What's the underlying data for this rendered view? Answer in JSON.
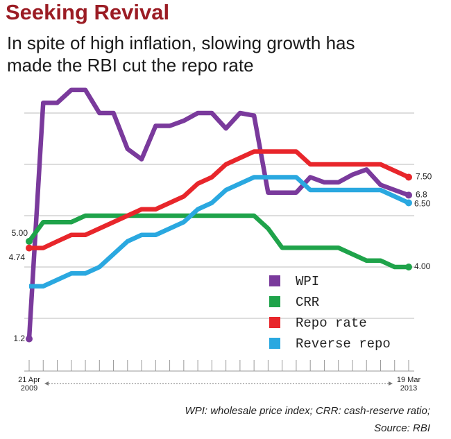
{
  "chart_data": {
    "type": "line",
    "title": "Seeking Revival",
    "subtitle": "In spite of high inflation, slowing growth has\nmade the RBI cut the repo rate",
    "note": "WPI: wholesale price index; CRR: cash-reserve ratio;\nSource: RBI",
    "categories": [
      "21 Apr\n2009",
      null,
      null,
      null,
      null,
      null,
      null,
      null,
      null,
      null,
      null,
      null,
      null,
      null,
      null,
      null,
      null,
      null,
      null,
      null,
      null,
      null,
      null,
      null,
      null,
      null,
      null,
      "19 Mar\n2013"
    ],
    "ylim": [
      0,
      12
    ],
    "yticks": [
      2,
      4,
      6,
      8,
      10
    ],
    "grid": true,
    "series": [
      {
        "name": "WPI",
        "color": "#7a3a9c",
        "values": [
          1.2,
          10.4,
          10.4,
          10.9,
          10.9,
          10.0,
          10.0,
          8.6,
          8.2,
          9.5,
          9.5,
          9.7,
          10.0,
          10.0,
          9.4,
          10.0,
          9.9,
          6.9,
          6.9,
          6.9,
          7.5,
          7.3,
          7.3,
          7.6,
          7.8,
          7.2,
          7.0,
          6.8
        ],
        "value_labels": [
          "1.2",
          null,
          null,
          null,
          null,
          null,
          null,
          null,
          null,
          null,
          null,
          null,
          null,
          null,
          null,
          null,
          null,
          null,
          null,
          null,
          null,
          null,
          null,
          null,
          null,
          null,
          null,
          "6.8"
        ]
      },
      {
        "name": "CRR",
        "color": "#1fa34a",
        "values": [
          5.0,
          5.75,
          5.75,
          5.75,
          6.0,
          6.0,
          6.0,
          6.0,
          6.0,
          6.0,
          6.0,
          6.0,
          6.0,
          6.0,
          6.0,
          6.0,
          6.0,
          5.5,
          4.75,
          4.75,
          4.75,
          4.75,
          4.75,
          4.5,
          4.25,
          4.25,
          4.0,
          4.0
        ],
        "value_labels": [
          "5.00",
          null,
          null,
          null,
          null,
          null,
          null,
          null,
          null,
          null,
          null,
          null,
          null,
          null,
          null,
          null,
          null,
          null,
          null,
          null,
          null,
          null,
          null,
          null,
          null,
          null,
          null,
          "4.00"
        ]
      },
      {
        "name": "Repo rate",
        "color": "#e8262b",
        "values": [
          4.74,
          4.74,
          5.0,
          5.25,
          5.25,
          5.5,
          5.75,
          6.0,
          6.25,
          6.25,
          6.5,
          6.75,
          7.25,
          7.5,
          8.0,
          8.25,
          8.5,
          8.5,
          8.5,
          8.5,
          8.0,
          8.0,
          8.0,
          8.0,
          8.0,
          8.0,
          7.75,
          7.5
        ],
        "value_labels": [
          "4.74",
          null,
          null,
          null,
          null,
          null,
          null,
          null,
          null,
          null,
          null,
          null,
          null,
          null,
          null,
          null,
          null,
          null,
          null,
          null,
          null,
          null,
          null,
          null,
          null,
          null,
          null,
          "7.50"
        ]
      },
      {
        "name": "Reverse repo",
        "color": "#2aa8e0",
        "values": [
          3.25,
          3.25,
          3.5,
          3.75,
          3.75,
          4.0,
          4.5,
          5.0,
          5.25,
          5.25,
          5.5,
          5.75,
          6.25,
          6.5,
          7.0,
          7.25,
          7.5,
          7.5,
          7.5,
          7.5,
          7.0,
          7.0,
          7.0,
          7.0,
          7.0,
          7.0,
          6.75,
          6.5
        ],
        "value_labels": [
          null,
          null,
          null,
          null,
          null,
          null,
          null,
          null,
          null,
          null,
          null,
          null,
          null,
          null,
          null,
          null,
          null,
          null,
          null,
          null,
          null,
          null,
          null,
          null,
          null,
          null,
          null,
          "6.50"
        ]
      }
    ]
  }
}
